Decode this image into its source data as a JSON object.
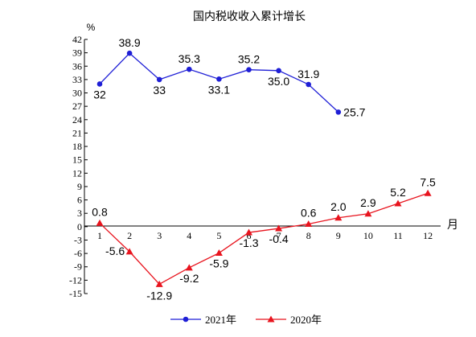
{
  "chart_data": {
    "type": "line",
    "title": "国内税收收入累计增长",
    "ylabel": "%",
    "xlabel": "月",
    "ylim": [
      -15,
      42
    ],
    "yticks": [
      42,
      39,
      36,
      33,
      30,
      27,
      24,
      21,
      18,
      15,
      12,
      9,
      6,
      3,
      0,
      -3,
      -6,
      -9,
      -12,
      -15
    ],
    "categories": [
      1,
      2,
      3,
      4,
      5,
      6,
      7,
      8,
      9,
      10,
      11,
      12
    ],
    "grid": false,
    "legend_position": "bottom",
    "series": [
      {
        "name": "2021年",
        "color": "#1f1fd6",
        "marker": "circle",
        "x": [
          1,
          2,
          3,
          4,
          5,
          6,
          7,
          8,
          9
        ],
        "values": [
          32,
          38.9,
          33,
          35.3,
          33.1,
          35.2,
          35.0,
          31.9,
          25.7
        ],
        "labels": [
          "32",
          "38.9",
          "33",
          "35.3",
          "33.1",
          "35.2",
          "35.0",
          "31.9",
          "25.7"
        ]
      },
      {
        "name": "2020年",
        "color": "#e8141e",
        "marker": "triangle",
        "x": [
          1,
          2,
          3,
          4,
          5,
          6,
          7,
          8,
          9,
          10,
          11,
          12
        ],
        "values": [
          0.8,
          -5.6,
          -12.9,
          -9.2,
          -5.9,
          -1.3,
          -0.4,
          0.6,
          2.0,
          2.9,
          5.2,
          7.5
        ],
        "labels": [
          "0.8",
          "-5.6",
          "-12.9",
          "-9.2",
          "-5.9",
          "-1.3",
          "-0.4",
          "0.6",
          "2.0",
          "2.9",
          "5.2",
          "7.5"
        ]
      }
    ]
  }
}
